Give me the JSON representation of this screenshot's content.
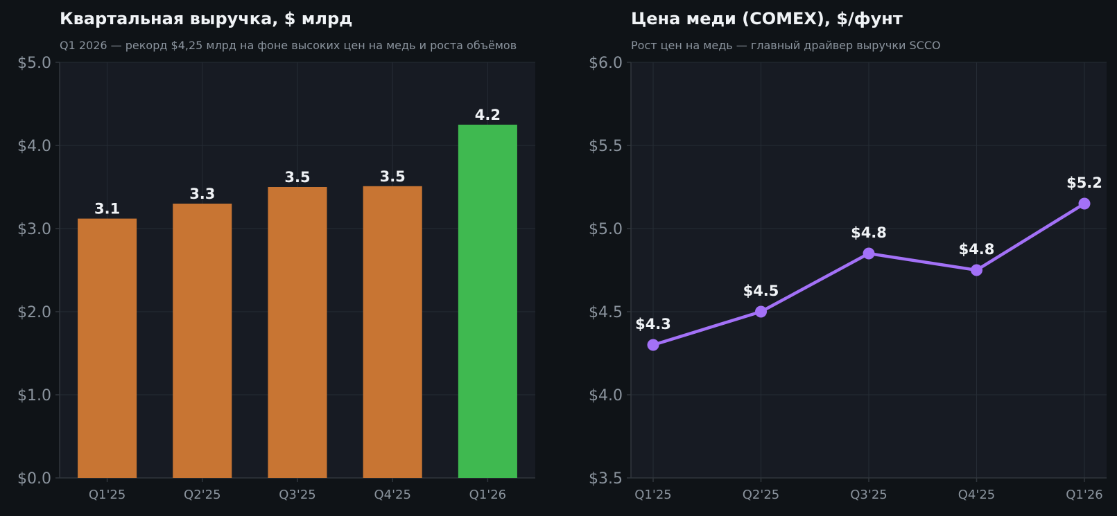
{
  "colors": {
    "background": "#0f1317",
    "plot_bg": "#171b23",
    "bar": "#c87533",
    "bar_highlight": "#3fb950",
    "line": "#a371f7",
    "text": "#f0f3f6",
    "muted": "#8b949e"
  },
  "chart_data": [
    {
      "type": "bar",
      "title": "Квартальная выручка, $ млрд",
      "subtitle": "Q1 2026 — рекорд $4,25 млрд на фоне высоких цен на медь и роста объёмов",
      "categories": [
        "Q1'25",
        "Q2'25",
        "Q3'25",
        "Q4'25",
        "Q1'26"
      ],
      "values": [
        3.12,
        3.3,
        3.5,
        3.51,
        4.25
      ],
      "data_labels": [
        "3.1",
        "3.3",
        "3.5",
        "3.5",
        "4.2"
      ],
      "highlight_index": 4,
      "ylim": [
        0,
        5
      ],
      "yticks": [
        0,
        1,
        2,
        3,
        4,
        5
      ],
      "ytick_labels": [
        "$0.0",
        "$1.0",
        "$2.0",
        "$3.0",
        "$4.0",
        "$5.0"
      ],
      "grid": true
    },
    {
      "type": "line",
      "title": "Цена меди (COMEX), $/фунт",
      "subtitle": "Рост цен на медь — главный драйвер выручки SCCO",
      "categories": [
        "Q1'25",
        "Q2'25",
        "Q3'25",
        "Q4'25",
        "Q1'26"
      ],
      "values": [
        4.3,
        4.5,
        4.85,
        4.75,
        5.15
      ],
      "data_labels": [
        "$4.3",
        "$4.5",
        "$4.8",
        "$4.8",
        "$5.2"
      ],
      "ylim": [
        3.5,
        6.0
      ],
      "yticks": [
        3.5,
        4.0,
        4.5,
        5.0,
        5.5,
        6.0
      ],
      "ytick_labels": [
        "$3.5",
        "$4.0",
        "$4.5",
        "$5.0",
        "$5.5",
        "$6.0"
      ],
      "grid": true
    }
  ]
}
